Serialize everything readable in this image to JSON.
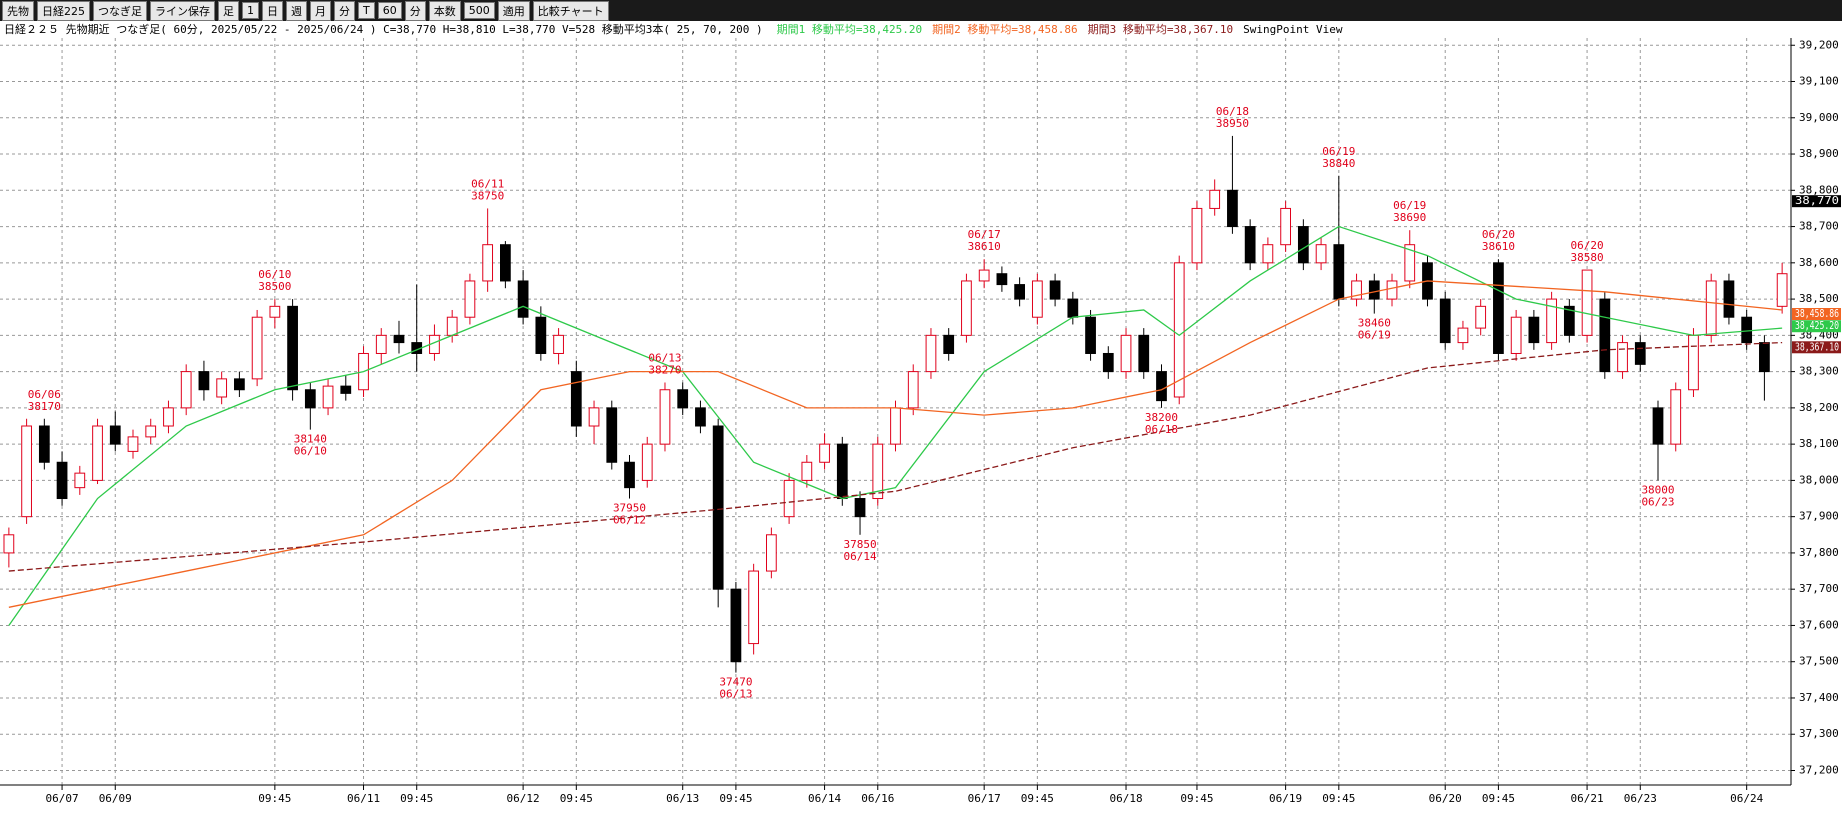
{
  "toolbar": {
    "items": [
      "先物",
      "日経225",
      "つなぎ足",
      "ライン保存",
      "足",
      "1",
      "日",
      "週",
      "月",
      "分",
      "T",
      "60",
      "分",
      "本数",
      "500",
      "適用",
      "比較チャート"
    ]
  },
  "chart_data": {
    "type": "candlestick",
    "title": "日経２２５ 先物期近 つなぎ足( 60分, 2025/05/22 - 2025/06/24 )  C=38,770 H=38,810 L=38,770 V=528  移動平均3本( 25, 70, 200 )",
    "subtitle": "SwingPoint View",
    "up_color": "#e0001b",
    "down_color": "#000000",
    "candles": [
      [
        37800,
        37870,
        37760,
        37850
      ],
      [
        37900,
        38170,
        37880,
        38150
      ],
      [
        38150,
        38170,
        38030,
        38050
      ],
      [
        38050,
        38080,
        37930,
        37950
      ],
      [
        37980,
        38040,
        37960,
        38020
      ],
      [
        38000,
        38170,
        37990,
        38150
      ],
      [
        38150,
        38190,
        38080,
        38100
      ],
      [
        38080,
        38140,
        38060,
        38120
      ],
      [
        38120,
        38170,
        38100,
        38150
      ],
      [
        38150,
        38220,
        38130,
        38200
      ],
      [
        38200,
        38320,
        38180,
        38300
      ],
      [
        38300,
        38330,
        38220,
        38250
      ],
      [
        38230,
        38300,
        38210,
        38280
      ],
      [
        38280,
        38300,
        38230,
        38250
      ],
      [
        38280,
        38470,
        38260,
        38450
      ],
      [
        38450,
        38500,
        38420,
        38480
      ],
      [
        38480,
        38500,
        38220,
        38250
      ],
      [
        38250,
        38270,
        38140,
        38200
      ],
      [
        38200,
        38280,
        38180,
        38260
      ],
      [
        38260,
        38290,
        38220,
        38240
      ],
      [
        38250,
        38370,
        38230,
        38350
      ],
      [
        38350,
        38420,
        38320,
        38400
      ],
      [
        38400,
        38440,
        38350,
        38380
      ],
      [
        38380,
        38540,
        38300,
        38350
      ],
      [
        38350,
        38430,
        38330,
        38400
      ],
      [
        38400,
        38470,
        38380,
        38450
      ],
      [
        38450,
        38570,
        38430,
        38550
      ],
      [
        38550,
        38750,
        38520,
        38650
      ],
      [
        38650,
        38660,
        38530,
        38550
      ],
      [
        38550,
        38580,
        38430,
        38450
      ],
      [
        38450,
        38480,
        38330,
        38350
      ],
      [
        38350,
        38420,
        38320,
        38400
      ],
      [
        38300,
        38330,
        38120,
        38150
      ],
      [
        38150,
        38220,
        38100,
        38200
      ],
      [
        38200,
        38220,
        38030,
        38050
      ],
      [
        38050,
        38070,
        37950,
        37980
      ],
      [
        38000,
        38120,
        37980,
        38100
      ],
      [
        38100,
        38270,
        38080,
        38250
      ],
      [
        38250,
        38270,
        38180,
        38200
      ],
      [
        38200,
        38220,
        38130,
        38150
      ],
      [
        38150,
        38170,
        37650,
        37700
      ],
      [
        37700,
        37720,
        37470,
        37500
      ],
      [
        37550,
        37770,
        37520,
        37750
      ],
      [
        37750,
        37870,
        37730,
        37850
      ],
      [
        37900,
        38020,
        37880,
        38000
      ],
      [
        38000,
        38070,
        37980,
        38050
      ],
      [
        38050,
        38130,
        38030,
        38100
      ],
      [
        38100,
        38120,
        37930,
        37950
      ],
      [
        37950,
        37970,
        37850,
        37900
      ],
      [
        37950,
        38120,
        37930,
        38100
      ],
      [
        38100,
        38220,
        38080,
        38200
      ],
      [
        38200,
        38320,
        38180,
        38300
      ],
      [
        38300,
        38420,
        38280,
        38400
      ],
      [
        38400,
        38420,
        38330,
        38350
      ],
      [
        38400,
        38570,
        38380,
        38550
      ],
      [
        38550,
        38610,
        38530,
        38580
      ],
      [
        38570,
        38590,
        38520,
        38540
      ],
      [
        38540,
        38560,
        38480,
        38500
      ],
      [
        38450,
        38570,
        38430,
        38550
      ],
      [
        38550,
        38570,
        38480,
        38500
      ],
      [
        38500,
        38520,
        38430,
        38450
      ],
      [
        38450,
        38470,
        38330,
        38350
      ],
      [
        38350,
        38370,
        38280,
        38300
      ],
      [
        38300,
        38420,
        38280,
        38400
      ],
      [
        38400,
        38420,
        38280,
        38300
      ],
      [
        38300,
        38320,
        38200,
        38220
      ],
      [
        38230,
        38620,
        38210,
        38600
      ],
      [
        38600,
        38770,
        38580,
        38750
      ],
      [
        38750,
        38830,
        38730,
        38800
      ],
      [
        38800,
        38950,
        38680,
        38700
      ],
      [
        38700,
        38720,
        38580,
        38600
      ],
      [
        38600,
        38670,
        38580,
        38650
      ],
      [
        38650,
        38770,
        38630,
        38750
      ],
      [
        38700,
        38720,
        38580,
        38600
      ],
      [
        38600,
        38670,
        38580,
        38650
      ],
      [
        38650,
        38840,
        38480,
        38500
      ],
      [
        38500,
        38570,
        38480,
        38550
      ],
      [
        38550,
        38570,
        38460,
        38500
      ],
      [
        38500,
        38570,
        38480,
        38550
      ],
      [
        38550,
        38690,
        38530,
        38650
      ],
      [
        38600,
        38620,
        38480,
        38500
      ],
      [
        38500,
        38520,
        38360,
        38380
      ],
      [
        38380,
        38440,
        38360,
        38420
      ],
      [
        38420,
        38500,
        38400,
        38480
      ],
      [
        38600,
        38610,
        38330,
        38350
      ],
      [
        38350,
        38470,
        38330,
        38450
      ],
      [
        38450,
        38470,
        38360,
        38380
      ],
      [
        38380,
        38520,
        38360,
        38500
      ],
      [
        38480,
        38500,
        38380,
        38400
      ],
      [
        38400,
        38580,
        38380,
        38580
      ],
      [
        38500,
        38520,
        38280,
        38300
      ],
      [
        38300,
        38400,
        38280,
        38380
      ],
      [
        38380,
        38400,
        38300,
        38320
      ],
      [
        38200,
        38220,
        38000,
        38100
      ],
      [
        38100,
        38270,
        38080,
        38250
      ],
      [
        38250,
        38420,
        38230,
        38400
      ],
      [
        38400,
        38570,
        38380,
        38550
      ],
      [
        38550,
        38570,
        38430,
        38450
      ],
      [
        38450,
        38470,
        38360,
        38380
      ],
      [
        38380,
        38400,
        38220,
        38300
      ],
      [
        38480,
        38600,
        38460,
        38570
      ]
    ],
    "moving_averages": [
      {
        "name": "期間1 移動平均=38,425.20",
        "color": "#2ec94a",
        "x": [
          0,
          5,
          10,
          15,
          20,
          25,
          29,
          33,
          38,
          42,
          47,
          50,
          55,
          60,
          64,
          66,
          70,
          75,
          80,
          85,
          90,
          95,
          100
        ],
        "values": [
          37600,
          37950,
          38150,
          38250,
          38300,
          38400,
          38480,
          38400,
          38300,
          38050,
          37950,
          37980,
          38300,
          38450,
          38470,
          38400,
          38550,
          38700,
          38620,
          38500,
          38450,
          38400,
          38420
        ]
      },
      {
        "name": "期間2 移動平均=38,458.86",
        "color": "#f26522",
        "x": [
          0,
          10,
          20,
          25,
          30,
          35,
          40,
          45,
          50,
          55,
          60,
          65,
          70,
          75,
          80,
          90,
          100
        ],
        "values": [
          37650,
          37750,
          37850,
          38000,
          38250,
          38300,
          38300,
          38200,
          38200,
          38180,
          38200,
          38250,
          38380,
          38500,
          38550,
          38520,
          38470
        ]
      },
      {
        "name": "期間3 移動平均=38,367.10",
        "color": "#8b1a1a",
        "line_style": "dashed",
        "x": [
          0,
          20,
          40,
          50,
          60,
          70,
          80,
          90,
          100
        ],
        "values": [
          37750,
          37830,
          37920,
          37970,
          38090,
          38180,
          38310,
          38360,
          38380
        ]
      }
    ],
    "swing_points": [
      {
        "x": 2,
        "date": "06/06",
        "value": 38170,
        "side": "high"
      },
      {
        "x": 15,
        "date": "06/10",
        "value": 38500,
        "side": "high"
      },
      {
        "x": 17,
        "date": "06/10",
        "value": 38140,
        "side": "low"
      },
      {
        "x": 27,
        "date": "06/11",
        "value": 38750,
        "side": "high"
      },
      {
        "x": 35,
        "date": "06/12",
        "value": 37950,
        "side": "low"
      },
      {
        "x": 37,
        "date": "06/13",
        "value": 38270,
        "side": "high"
      },
      {
        "x": 41,
        "date": "06/13",
        "value": 37470,
        "side": "low"
      },
      {
        "x": 48,
        "date": "06/14",
        "value": 37850,
        "side": "low"
      },
      {
        "x": 55,
        "date": "06/17",
        "value": 38610,
        "side": "high"
      },
      {
        "x": 65,
        "date": "06/18",
        "value": 38200,
        "side": "low"
      },
      {
        "x": 69,
        "date": "06/18",
        "value": 38950,
        "side": "high"
      },
      {
        "x": 75,
        "date": "06/19",
        "value": 38840,
        "side": "high"
      },
      {
        "x": 77,
        "date": "06/19",
        "value": 38460,
        "side": "low"
      },
      {
        "x": 79,
        "date": "06/19",
        "value": 38690,
        "side": "high"
      },
      {
        "x": 84,
        "date": "06/20",
        "value": 38610,
        "side": "high"
      },
      {
        "x": 89,
        "date": "06/20",
        "value": 38580,
        "side": "high"
      },
      {
        "x": 93,
        "date": "06/23",
        "value": 38000,
        "side": "low"
      }
    ],
    "price_tags": [
      {
        "value": 38770,
        "label": "38,770",
        "color": "#000000"
      },
      {
        "value": 38458.86,
        "label": "38,458.86",
        "color": "#f26522"
      },
      {
        "value": 38425.2,
        "label": "38,425.20",
        "color": "#2ec94a"
      },
      {
        "value": 38367.1,
        "label": "38,367.10",
        "color": "#8b1a1a"
      }
    ],
    "xlim": [
      -0.5,
      100.5
    ],
    "xticks": [
      {
        "value": 3,
        "label": "06/07"
      },
      {
        "value": 6,
        "label": "06/09"
      },
      {
        "value": 15,
        "label": "09:45"
      },
      {
        "value": 20,
        "label": "06/11"
      },
      {
        "value": 23,
        "label": "09:45"
      },
      {
        "value": 29,
        "label": "06/12"
      },
      {
        "value": 32,
        "label": "09:45"
      },
      {
        "value": 38,
        "label": "06/13"
      },
      {
        "value": 41,
        "label": "09:45"
      },
      {
        "value": 46,
        "label": "06/14"
      },
      {
        "value": 49,
        "label": "06/16"
      },
      {
        "value": 55,
        "label": "06/17"
      },
      {
        "value": 58,
        "label": "09:45"
      },
      {
        "value": 63,
        "label": "06/18"
      },
      {
        "value": 67,
        "label": "09:45"
      },
      {
        "value": 72,
        "label": "06/19"
      },
      {
        "value": 75,
        "label": "09:45"
      },
      {
        "value": 81,
        "label": "06/20"
      },
      {
        "value": 84,
        "label": "09:45"
      },
      {
        "value": 89,
        "label": "06/21"
      },
      {
        "value": 92,
        "label": "06/23"
      },
      {
        "value": 98,
        "label": "06/24"
      }
    ],
    "ylim": [
      37160,
      39220
    ],
    "yticks": [
      {
        "value": 37200,
        "label": "37,200"
      },
      {
        "value": 37300,
        "label": "37,300"
      },
      {
        "value": 37400,
        "label": "37,400"
      },
      {
        "value": 37500,
        "label": "37,500"
      },
      {
        "value": 37600,
        "label": "37,600"
      },
      {
        "value": 37700,
        "label": "37,700"
      },
      {
        "value": 37800,
        "label": "37,800"
      },
      {
        "value": 37900,
        "label": "37,900"
      },
      {
        "value": 38000,
        "label": "38,000"
      },
      {
        "value": 38100,
        "label": "38,100"
      },
      {
        "value": 38200,
        "label": "38,200"
      },
      {
        "value": 38300,
        "label": "38,300"
      },
      {
        "value": 38400,
        "label": "38,400"
      },
      {
        "value": 38500,
        "label": "38,500"
      },
      {
        "value": 38600,
        "label": "38,600"
      },
      {
        "value": 38700,
        "label": "38,700"
      },
      {
        "value": 38800,
        "label": "38,800"
      },
      {
        "value": 38900,
        "label": "38,900"
      },
      {
        "value": 39000,
        "label": "39,000"
      },
      {
        "value": 39100,
        "label": "39,100"
      },
      {
        "value": 39200,
        "label": "39,200"
      }
    ],
    "grid": true
  }
}
